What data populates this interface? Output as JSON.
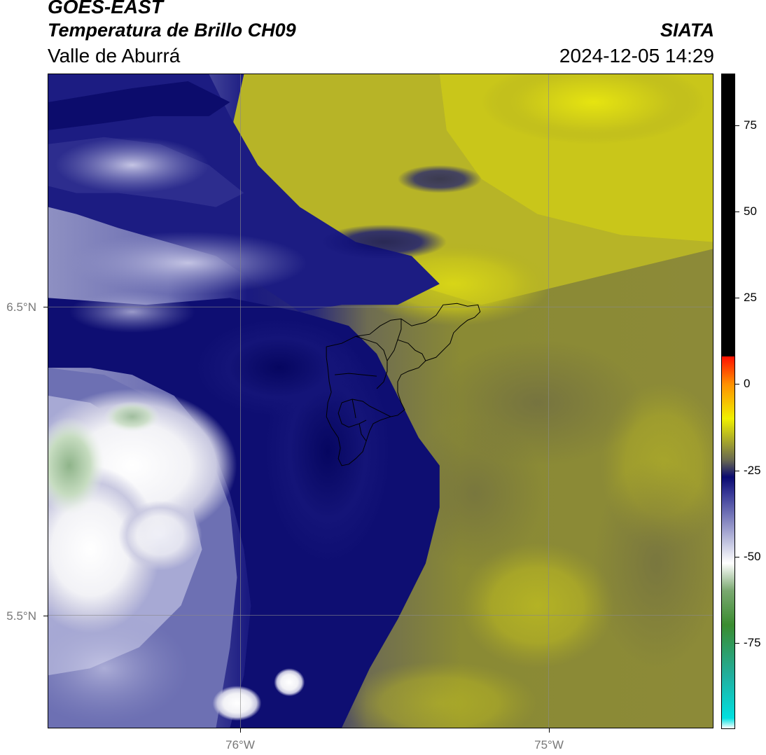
{
  "header": {
    "title": "GOES-EAST",
    "subtitle": "Temperatura de Brillo CH09",
    "region": "Valle de Aburrá",
    "organization": "SIATA",
    "timestamp": "2024-12-05 14:29"
  },
  "map": {
    "lat_labels": [
      {
        "value": 6.5,
        "text": "6.5°N"
      },
      {
        "value": 5.5,
        "text": "5.5°N"
      }
    ],
    "lon_labels": [
      {
        "value": -76,
        "text": "76°W"
      },
      {
        "value": -75,
        "text": "75°W"
      }
    ],
    "lat_range": [
      5.13,
      7.25
    ],
    "lon_range": [
      -76.63,
      -74.47
    ]
  },
  "colorbar": {
    "range": [
      -100,
      90
    ],
    "ticks": [
      {
        "value": 75,
        "text": "75"
      },
      {
        "value": 50,
        "text": "50"
      },
      {
        "value": 25,
        "text": "25"
      },
      {
        "value": 0,
        "text": "0"
      },
      {
        "value": -25,
        "text": "-25"
      },
      {
        "value": -50,
        "text": "-50"
      },
      {
        "value": -75,
        "text": "-75"
      }
    ],
    "stops": [
      {
        "value": -100,
        "color": "#ffffff"
      },
      {
        "value": -97,
        "color": "#00e0e0"
      },
      {
        "value": -85,
        "color": "#20b0a0"
      },
      {
        "value": -70,
        "color": "#3a8c30"
      },
      {
        "value": -60,
        "color": "#7aa870"
      },
      {
        "value": -52,
        "color": "#ffffff"
      },
      {
        "value": -42,
        "color": "#9a9ccc"
      },
      {
        "value": -32,
        "color": "#3a3a98"
      },
      {
        "value": -27,
        "color": "#0a0a70"
      },
      {
        "value": -22,
        "color": "#6a6a50"
      },
      {
        "value": -15,
        "color": "#b8b820"
      },
      {
        "value": -10,
        "color": "#f0f000"
      },
      {
        "value": 0,
        "color": "#ff9000"
      },
      {
        "value": 8,
        "color": "#ff1000"
      },
      {
        "value": 8.1,
        "color": "#000000"
      },
      {
        "value": 90,
        "color": "#000000"
      }
    ]
  }
}
